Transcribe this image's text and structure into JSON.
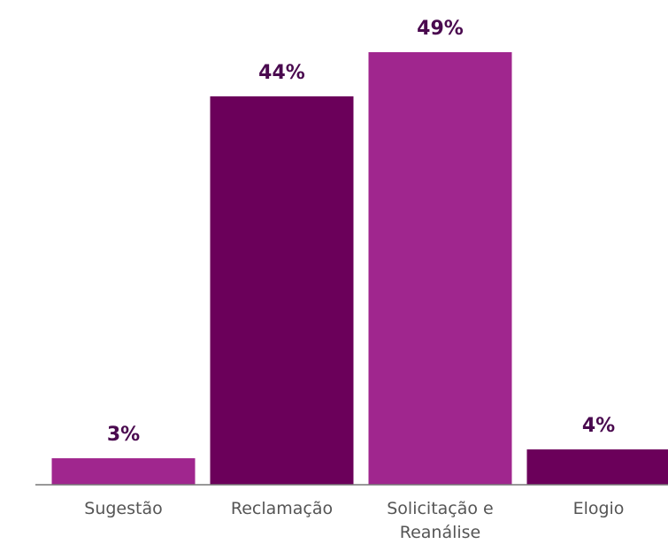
{
  "chart_data": {
    "type": "bar",
    "categories": [
      "Sugestão",
      "Reclamação",
      "Solicitação e Reanálise",
      "Elogio"
    ],
    "values": [
      3,
      44,
      49,
      4
    ],
    "value_labels": [
      "3%",
      "44%",
      "49%",
      "4%"
    ],
    "colors": [
      "#a0268e",
      "#6b005a",
      "#a0268e",
      "#6b005a"
    ],
    "ylim": [
      0,
      50
    ]
  }
}
